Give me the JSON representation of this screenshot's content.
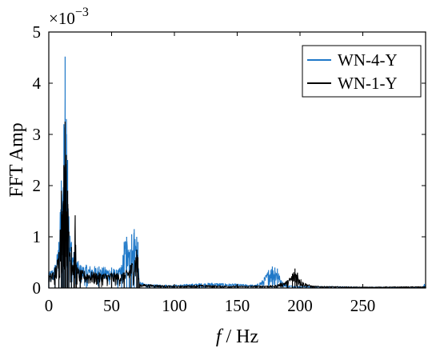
{
  "chart_data": {
    "type": "line",
    "xlabel_italic": "f",
    "xlabel_rest": " / Hz",
    "ylabel": "FFT Amp",
    "y_multiplier_base": "×10",
    "y_multiplier_exp": "−3",
    "xlim": [
      0,
      300
    ],
    "ylim": [
      0,
      5
    ],
    "x_ticks": [
      0,
      50,
      100,
      150,
      200,
      250
    ],
    "y_ticks": [
      0,
      1,
      2,
      3,
      4,
      5
    ],
    "grid": false,
    "legend_position": "top-right",
    "series": [
      {
        "name": "WN-4-Y",
        "color": "#1f78c8",
        "profile": [
          [
            0,
            0.3
          ],
          [
            5,
            0.45
          ],
          [
            8,
            0.9
          ],
          [
            10,
            2.1
          ],
          [
            11,
            1.6
          ],
          [
            12,
            3.2
          ],
          [
            13,
            4.52
          ],
          [
            14,
            3.3
          ],
          [
            15,
            2.5
          ],
          [
            16,
            1.4
          ],
          [
            18,
            0.9
          ],
          [
            20,
            0.7
          ],
          [
            25,
            0.45
          ],
          [
            30,
            0.45
          ],
          [
            40,
            0.42
          ],
          [
            50,
            0.4
          ],
          [
            55,
            0.35
          ],
          [
            58,
            0.45
          ],
          [
            60,
            0.9
          ],
          [
            62,
            1.0
          ],
          [
            64,
            0.7
          ],
          [
            66,
            1.05
          ],
          [
            68,
            1.15
          ],
          [
            70,
            1.0
          ],
          [
            71,
            0.9
          ],
          [
            72,
            0.12
          ],
          [
            80,
            0.07
          ],
          [
            100,
            0.06
          ],
          [
            120,
            0.09
          ],
          [
            130,
            0.1
          ],
          [
            150,
            0.08
          ],
          [
            165,
            0.06
          ],
          [
            170,
            0.15
          ],
          [
            175,
            0.35
          ],
          [
            178,
            0.42
          ],
          [
            180,
            0.4
          ],
          [
            182,
            0.38
          ],
          [
            185,
            0.15
          ],
          [
            190,
            0.05
          ],
          [
            200,
            0.04
          ],
          [
            250,
            0.02
          ],
          [
            298,
            0.02
          ],
          [
            299,
            0.08
          ],
          [
            300,
            0.02
          ]
        ]
      },
      {
        "name": "WN-1-Y",
        "color": "#000000",
        "profile": [
          [
            0,
            0.25
          ],
          [
            5,
            0.4
          ],
          [
            8,
            0.7
          ],
          [
            10,
            1.9
          ],
          [
            11,
            1.5
          ],
          [
            12,
            2.4
          ],
          [
            13,
            3.25
          ],
          [
            14,
            2.6
          ],
          [
            15,
            1.9
          ],
          [
            16,
            1.1
          ],
          [
            18,
            0.8
          ],
          [
            20,
            0.55
          ],
          [
            21,
            1.42
          ],
          [
            22,
            0.45
          ],
          [
            25,
            0.35
          ],
          [
            40,
            0.3
          ],
          [
            50,
            0.3
          ],
          [
            60,
            0.3
          ],
          [
            65,
            0.45
          ],
          [
            70,
            0.75
          ],
          [
            71,
            0.6
          ],
          [
            72,
            0.08
          ],
          [
            100,
            0.04
          ],
          [
            120,
            0.06
          ],
          [
            130,
            0.05
          ],
          [
            150,
            0.04
          ],
          [
            180,
            0.05
          ],
          [
            190,
            0.15
          ],
          [
            194,
            0.28
          ],
          [
            196,
            0.38
          ],
          [
            198,
            0.3
          ],
          [
            202,
            0.12
          ],
          [
            210,
            0.04
          ],
          [
            250,
            0.02
          ],
          [
            299,
            0.03
          ],
          [
            300,
            0.02
          ]
        ]
      }
    ]
  }
}
